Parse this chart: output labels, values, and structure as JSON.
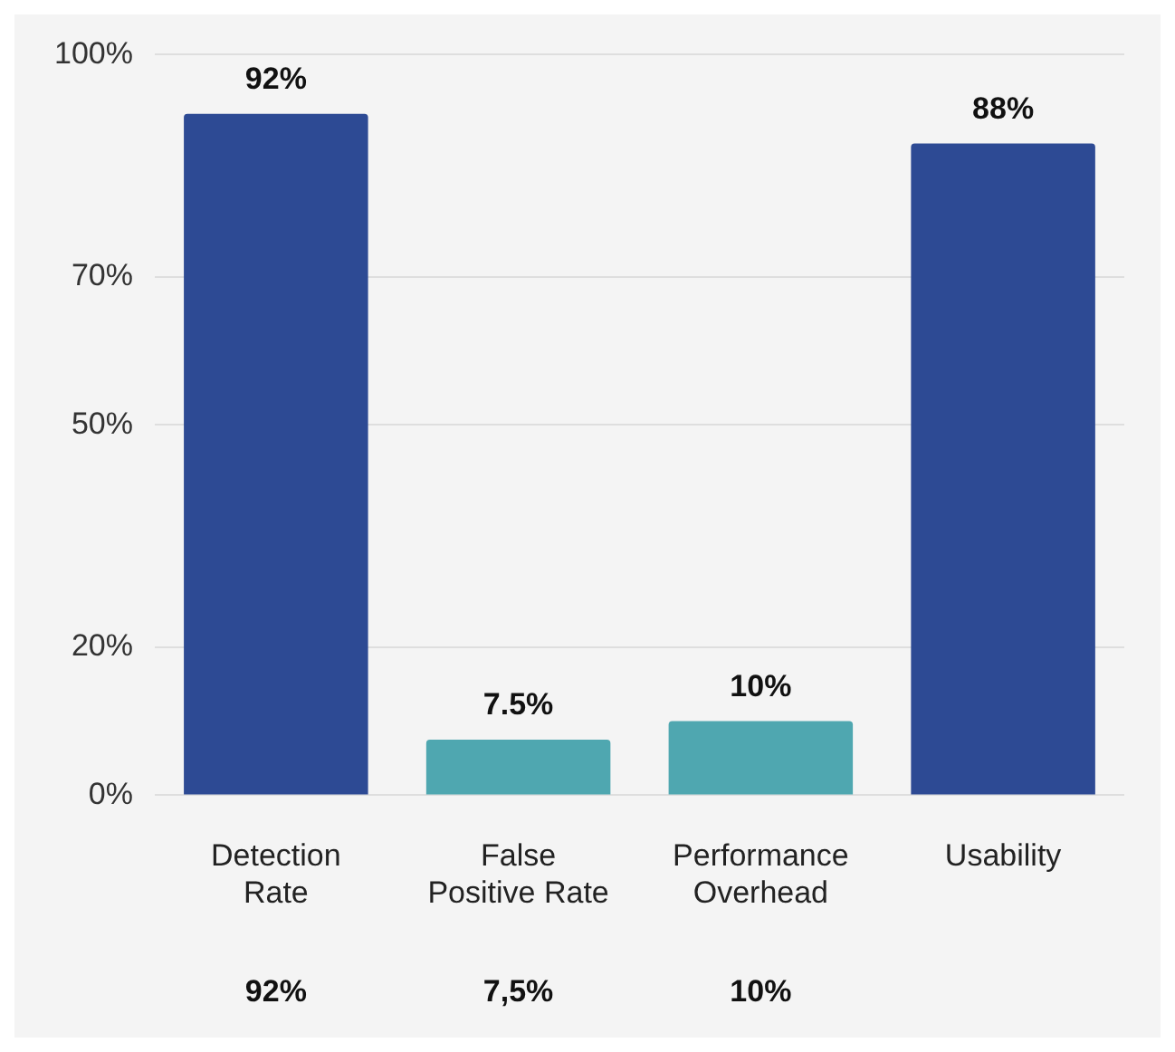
{
  "chart_data": {
    "type": "bar",
    "categories": [
      "Detection Rate",
      "False Positive Rate",
      "Performance Overhead",
      "Usability"
    ],
    "values": [
      92,
      7.5,
      10,
      88
    ],
    "colors": [
      "#2d4a94",
      "#4fa7b0",
      "#4fa7b0",
      "#2d4a94"
    ],
    "value_labels": [
      "92%",
      "7.5%",
      "10%",
      "88%"
    ],
    "ylim": [
      0,
      100
    ],
    "yticks": [
      {
        "value": 0,
        "label": "0%"
      },
      {
        "value": 20,
        "label": "20%"
      },
      {
        "value": 50,
        "label": "50%"
      },
      {
        "value": 70,
        "label": "70%"
      },
      {
        "value": 100,
        "label": "100%"
      }
    ],
    "grid": "y",
    "annotations": [
      "92%",
      "7,5%",
      "10%"
    ]
  }
}
